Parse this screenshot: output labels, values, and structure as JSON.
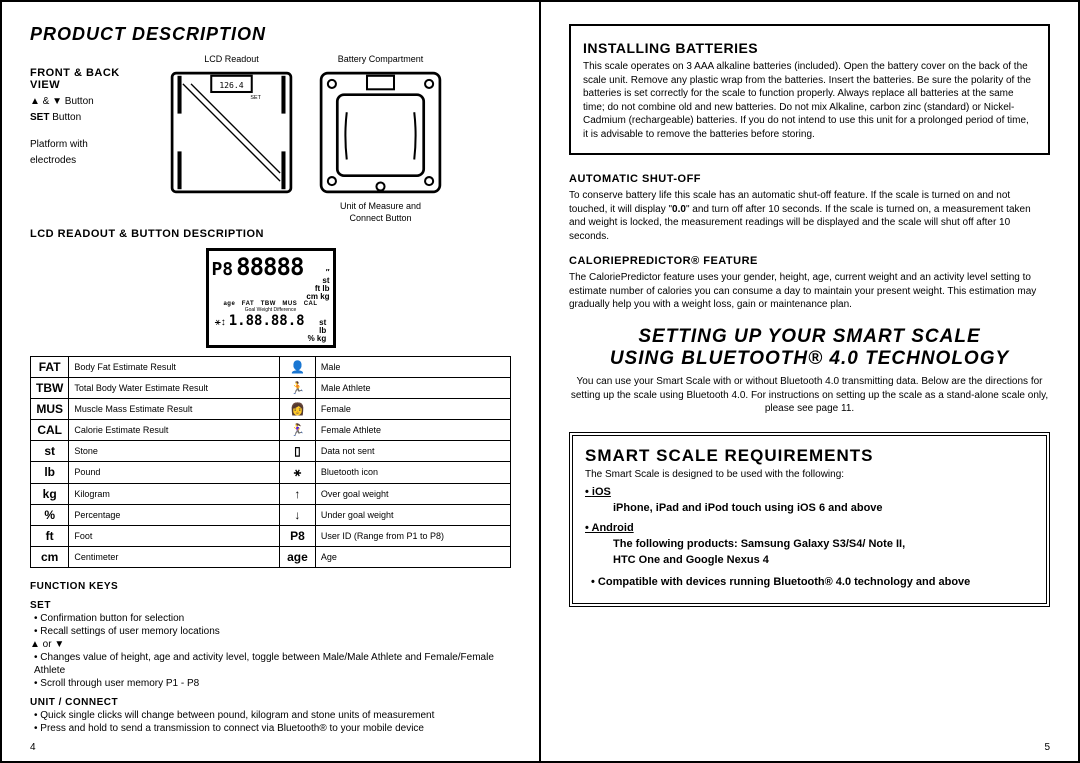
{
  "left": {
    "title": "PRODUCT DESCRIPTION",
    "frontBackHeading": "FRONT & BACK VIEW",
    "labels": {
      "updown": "▲ & ▼ Button",
      "set": "SET Button",
      "platform1": "Platform with",
      "platform2": "electrodes"
    },
    "captions": {
      "lcd": "LCD Readout",
      "batt": "Battery Compartment",
      "unit1": "Unit of Measure and",
      "unit2": "Connect Button"
    },
    "lcdHeading": "LCD READOUT & BUTTON DESCRIPTION",
    "lcdDigits": "88888",
    "lcdP": "P8",
    "table": [
      [
        "FAT",
        "Body Fat Estimate Result",
        "👤",
        "Male"
      ],
      [
        "TBW",
        "Total Body Water Estimate Result",
        "🏃",
        "Male Athlete"
      ],
      [
        "MUS",
        "Muscle Mass Estimate Result",
        "👩",
        "Female"
      ],
      [
        "CAL",
        "Calorie Estimate Result",
        "🏃‍♀️",
        "Female Athlete"
      ],
      [
        "st",
        "Stone",
        "▯",
        "Data not sent"
      ],
      [
        "lb",
        "Pound",
        "⚹",
        "Bluetooth icon"
      ],
      [
        "kg",
        "Kilogram",
        "↑",
        "Over goal weight"
      ],
      [
        "%",
        "Percentage",
        "↓",
        "Under goal weight"
      ],
      [
        "ft",
        "Foot",
        "P8",
        "User ID (Range from P1 to P8)"
      ],
      [
        "cm",
        "Centimeter",
        "age",
        "Age"
      ]
    ],
    "funcKeys": {
      "h": "FUNCTION KEYS",
      "setH": "SET",
      "setItems": [
        "Confirmation button for selection",
        "Recall settings of user memory locations"
      ],
      "arrH": "▲ or ▼",
      "arrItems": [
        "Changes value of height, age and activity level, toggle between Male/Male Athlete and Female/Female Athlete",
        "Scroll through user memory P1 - P8"
      ],
      "unitH": "UNIT / CONNECT",
      "unitItems": [
        "Quick single clicks will change between pound, kilogram and stone units of measurement",
        "Press and hold to send a transmission to connect via Bluetooth® to your mobile device"
      ]
    },
    "pageNum": "4"
  },
  "right": {
    "install": {
      "h": "INSTALLING BATTERIES",
      "body": "This scale operates on 3 AAA alkaline batteries (included). Open the battery cover on the back of the scale unit. Remove any plastic wrap from the batteries. Insert the batteries. Be sure the polarity of the batteries is set correctly for the scale to function properly. Always replace all batteries at the same time; do not combine old and new batteries. Do not mix Alkaline, carbon zinc (standard) or Nickel- Cadmium (rechargeable) batteries. If you do not intend to use this unit for a prolonged period of time, it is advisable to remove the batteries before storing."
    },
    "auto": {
      "h": "AUTOMATIC SHUT-OFF",
      "body": "To conserve battery life this scale has an automatic shut-off feature.  If the scale is turned on and not touched, it will display \"0.0\" and turn off after 10 seconds.  If the scale is turned on, a measurement taken and weight is locked, the measurement readings will be displayed and the scale will shut off after 10 seconds."
    },
    "cal": {
      "h": "CALORIEPREDICTOR® FEATURE",
      "body": "The CaloriePredictor feature uses your gender, height, age, current weight and an activity level setting to estimate number of calories you can consume a day to maintain your present weight. This estimation may gradually help you with a weight loss, gain or maintenance plan."
    },
    "setup": {
      "l1": "SETTING UP YOUR SMART SCALE",
      "l2": "USING BLUETOOTH® 4.0 TECHNOLOGY",
      "body": "You can use your Smart Scale with or without Bluetooth 4.0 transmitting data.  Below are the directions for setting up the scale using Bluetooth 4.0.  For instructions on setting up the scale as a stand-alone scale only, please see page 11."
    },
    "req": {
      "h": "SMART SCALE REQUIREMENTS",
      "intro": "The Smart Scale is designed to be used with the following:",
      "ios": "iOS",
      "iosSub": "iPhone, iPad and iPod touch using iOS 6 and above",
      "and": "Android",
      "andSub1": "The following products: Samsung Galaxy S3/S4/ Note II,",
      "andSub2": "HTC One and Google Nexus 4",
      "compat": "• Compatible with devices running Bluetooth® 4.0 technology and above"
    },
    "pageNum": "5"
  },
  "colors": {
    "fg": "#000000",
    "bg": "#ffffff"
  }
}
